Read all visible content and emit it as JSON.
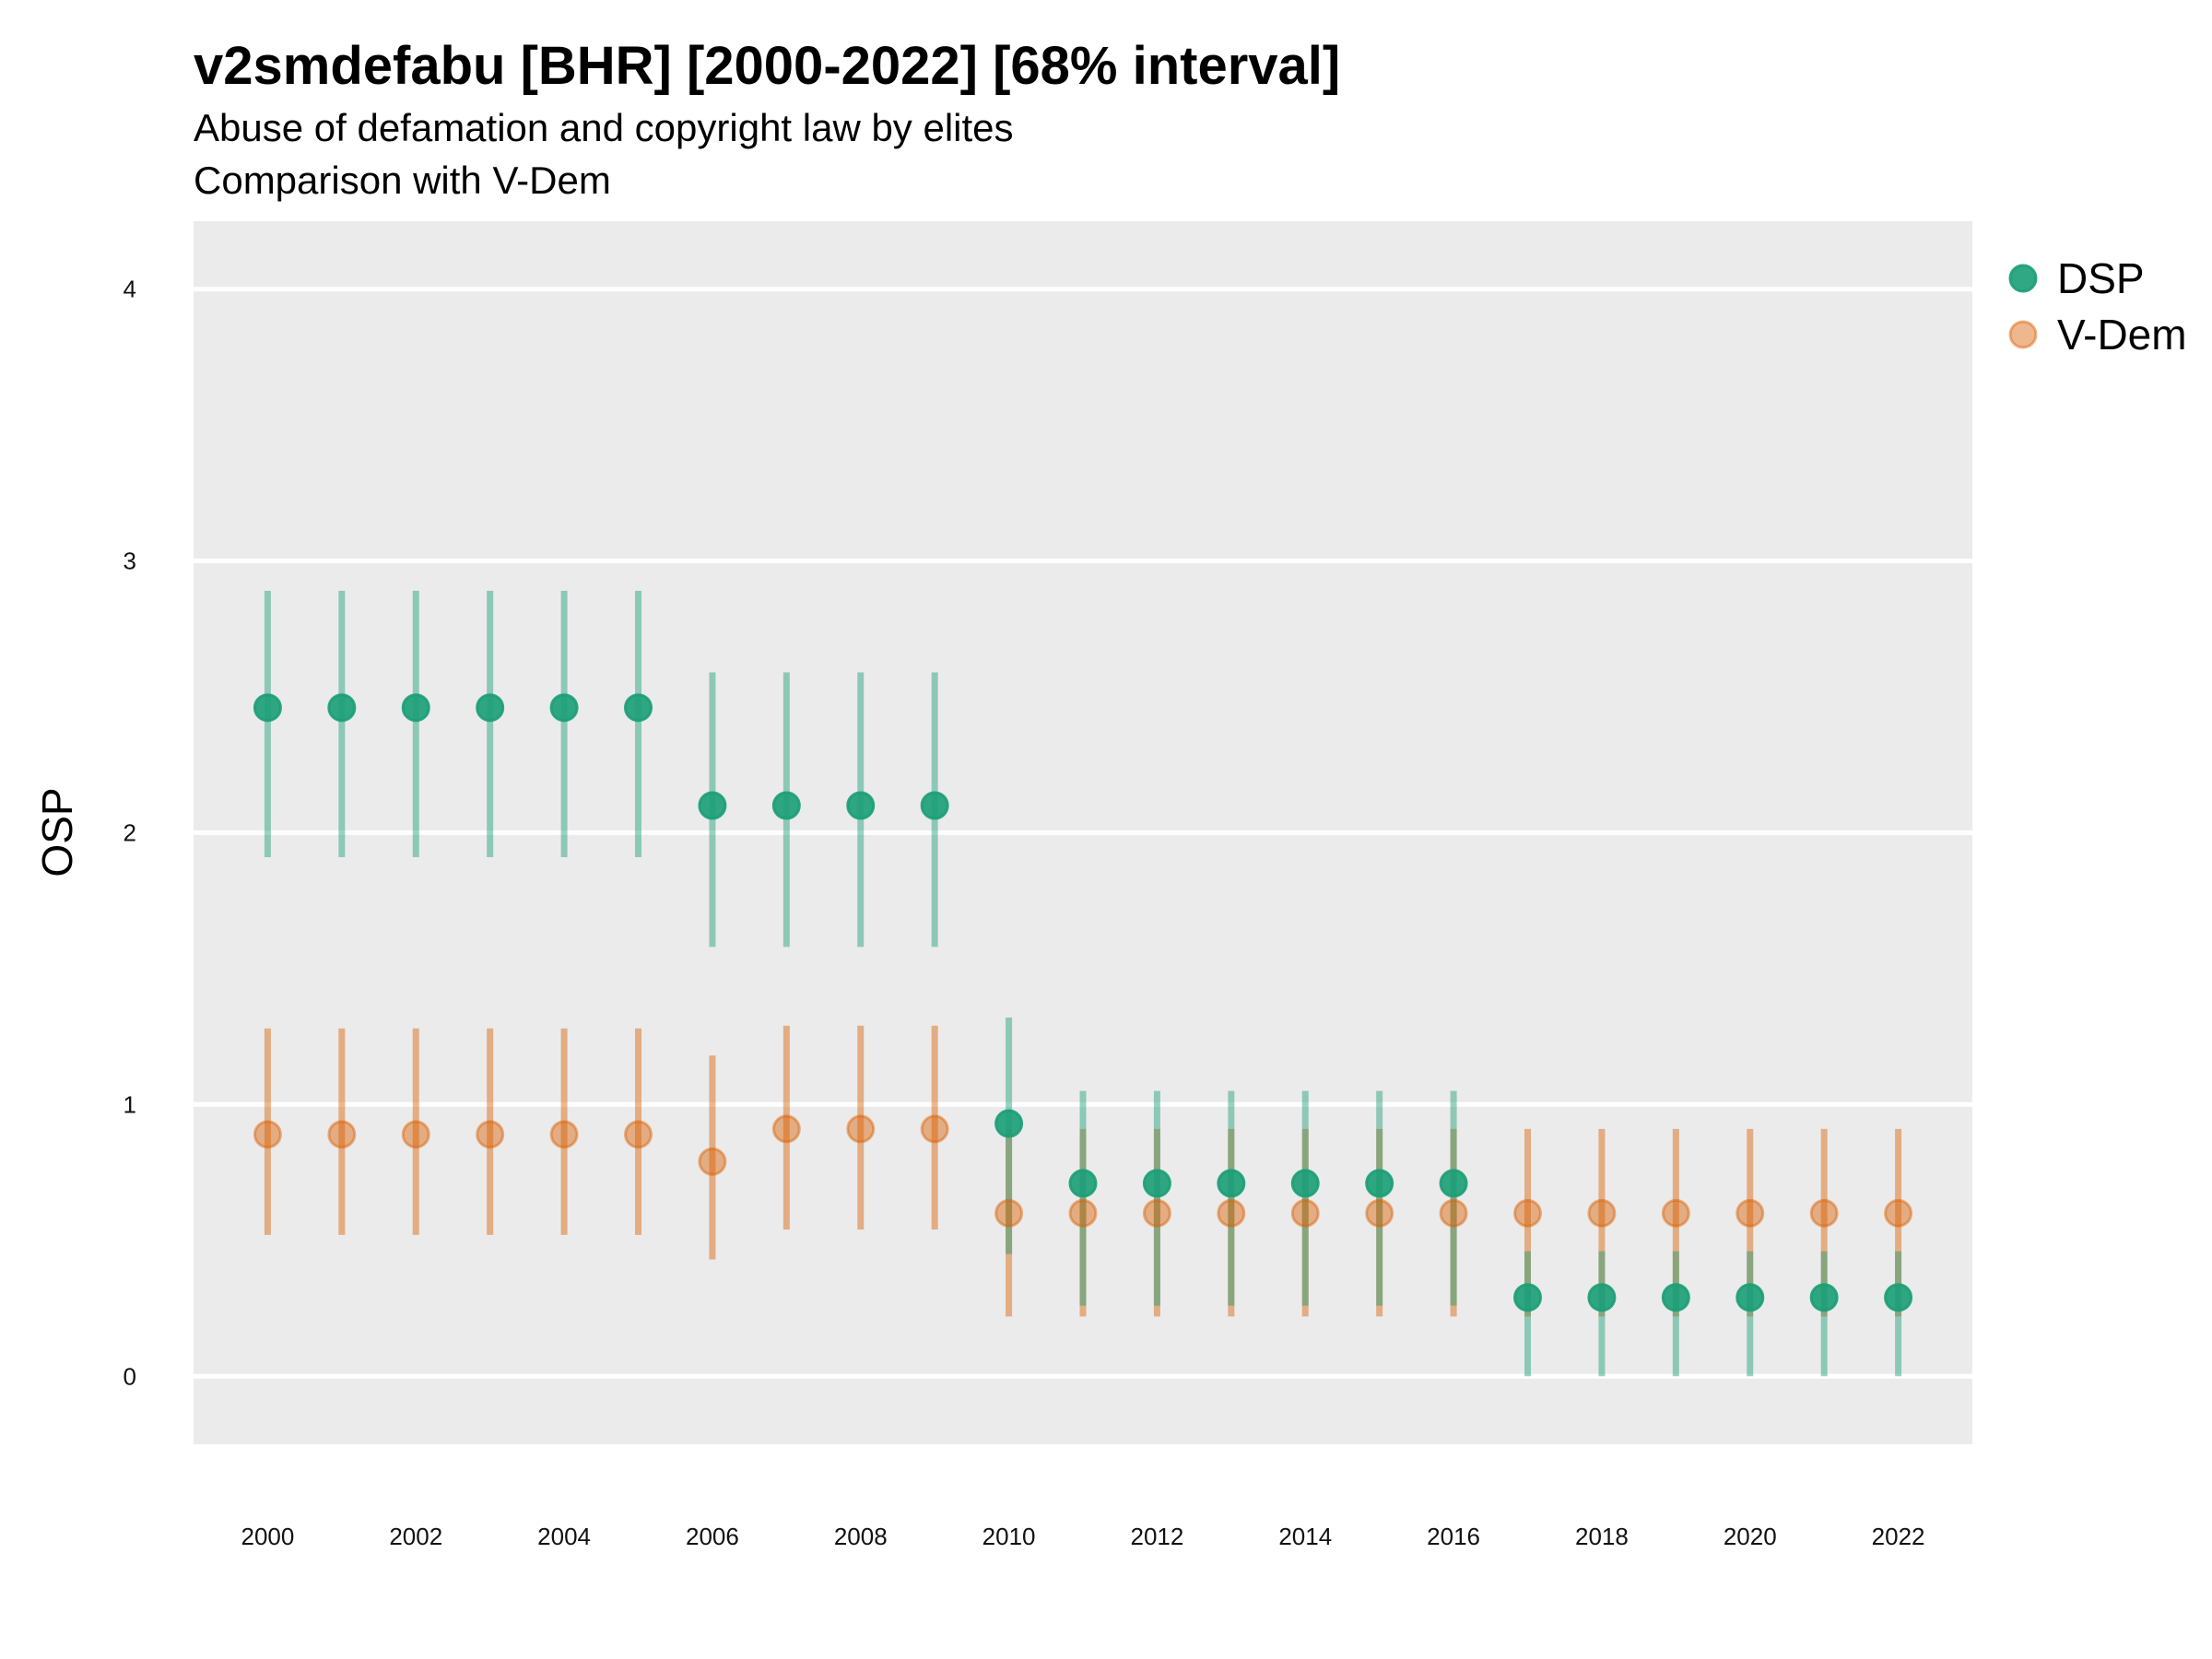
{
  "chart_data": {
    "type": "scatter",
    "title": "v2smdefabu [BHR] [2000-2022] [68% interval]",
    "subtitle": [
      "Abuse of defamation and copyright law by elites",
      "Comparison with V-Dem"
    ],
    "ylabel": "OSP",
    "xlabel": "",
    "ylim": [
      -0.25,
      4.25
    ],
    "yticks": [
      0,
      1,
      2,
      3,
      4
    ],
    "xlim": [
      1999,
      2023
    ],
    "xticks": [
      2000,
      2002,
      2004,
      2006,
      2008,
      2010,
      2012,
      2014,
      2016,
      2018,
      2020,
      2022
    ],
    "grid": true,
    "legend_position": "right",
    "series": [
      {
        "name": "DSP",
        "color": "#1b9e77",
        "x": [
          2000,
          2001,
          2002,
          2003,
          2004,
          2005,
          2006,
          2007,
          2008,
          2009,
          2010,
          2011,
          2012,
          2013,
          2014,
          2015,
          2016,
          2017,
          2018,
          2019,
          2020,
          2021,
          2022
        ],
        "y": [
          2.46,
          2.46,
          2.46,
          2.46,
          2.46,
          2.46,
          2.1,
          2.1,
          2.1,
          2.1,
          0.93,
          0.71,
          0.71,
          0.71,
          0.71,
          0.71,
          0.71,
          0.29,
          0.29,
          0.29,
          0.29,
          0.29,
          0.29
        ],
        "lower": [
          1.91,
          1.91,
          1.91,
          1.91,
          1.91,
          1.91,
          1.58,
          1.58,
          1.58,
          1.58,
          0.45,
          0.26,
          0.26,
          0.26,
          0.26,
          0.26,
          0.26,
          0.0,
          0.0,
          0.0,
          0.0,
          0.0,
          0.0
        ],
        "upper": [
          2.89,
          2.89,
          2.89,
          2.89,
          2.89,
          2.89,
          2.59,
          2.59,
          2.59,
          2.59,
          1.32,
          1.05,
          1.05,
          1.05,
          1.05,
          1.05,
          1.05,
          0.46,
          0.46,
          0.46,
          0.46,
          0.46,
          0.46
        ]
      },
      {
        "name": "V-Dem",
        "color": "#d95f02",
        "x": [
          2000,
          2001,
          2002,
          2003,
          2004,
          2005,
          2006,
          2007,
          2008,
          2009,
          2010,
          2011,
          2012,
          2013,
          2014,
          2015,
          2016,
          2017,
          2018,
          2019,
          2020,
          2021,
          2022
        ],
        "y": [
          0.89,
          0.89,
          0.89,
          0.89,
          0.89,
          0.89,
          0.79,
          0.91,
          0.91,
          0.91,
          0.6,
          0.6,
          0.6,
          0.6,
          0.6,
          0.6,
          0.6,
          0.6,
          0.6,
          0.6,
          0.6,
          0.6,
          0.6
        ],
        "lower": [
          0.52,
          0.52,
          0.52,
          0.52,
          0.52,
          0.52,
          0.43,
          0.54,
          0.54,
          0.54,
          0.22,
          0.22,
          0.22,
          0.22,
          0.22,
          0.22,
          0.22,
          0.22,
          0.22,
          0.22,
          0.22,
          0.22,
          0.22
        ],
        "upper": [
          1.28,
          1.28,
          1.28,
          1.28,
          1.28,
          1.28,
          1.18,
          1.29,
          1.29,
          1.29,
          0.91,
          0.91,
          0.91,
          0.91,
          0.91,
          0.91,
          0.91,
          0.91,
          0.91,
          0.91,
          0.91,
          0.91,
          0.91
        ]
      }
    ]
  }
}
